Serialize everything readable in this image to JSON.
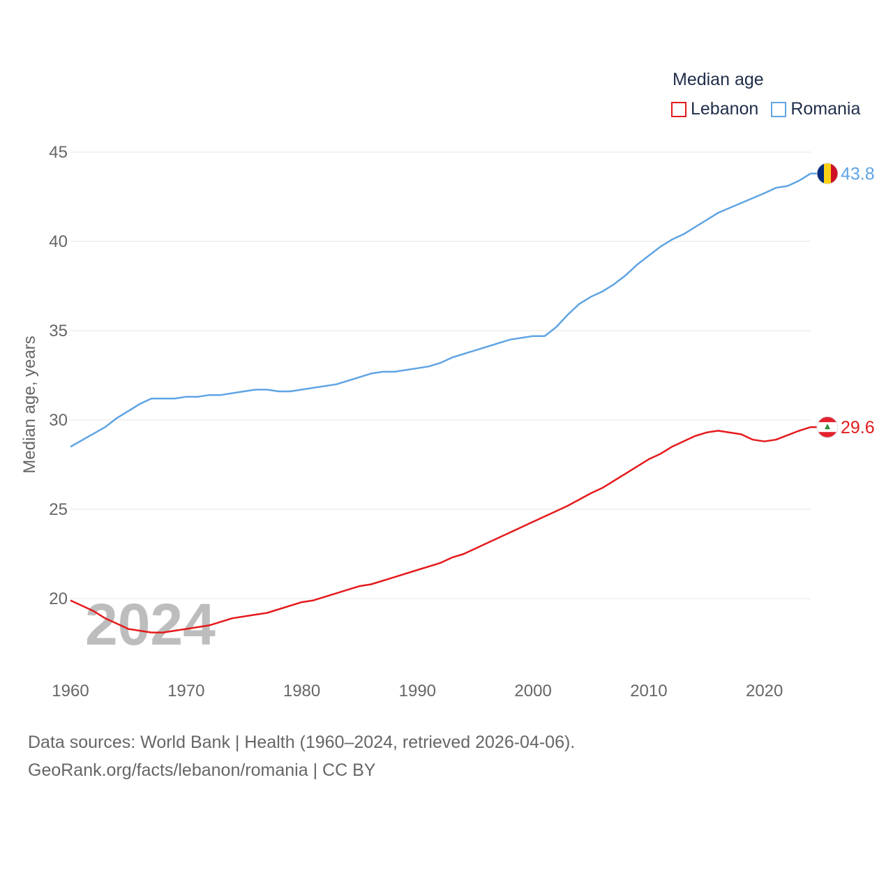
{
  "chart_data": {
    "type": "line",
    "legend_title": "Median age",
    "ylabel": "Median age, years",
    "xlabel": "",
    "x_range": [
      1960,
      2024
    ],
    "ylim": [
      17,
      45
    ],
    "y_ticks": [
      20,
      25,
      30,
      35,
      40,
      45
    ],
    "x_ticks": [
      1960,
      1970,
      1980,
      1990,
      2000,
      2010,
      2020
    ],
    "year_label": "2024",
    "legend_position": "top-right",
    "series": [
      {
        "name": "Lebanon",
        "color": "#e41a1c",
        "end_label": "29.6",
        "flag_icon": "lebanon-flag-icon",
        "points": [
          [
            1960,
            19.9
          ],
          [
            1962,
            19.3
          ],
          [
            1963,
            18.9
          ],
          [
            1964,
            18.6
          ],
          [
            1965,
            18.3
          ],
          [
            1967,
            18.1
          ],
          [
            1968,
            18.1
          ],
          [
            1970,
            18.3
          ],
          [
            1972,
            18.5
          ],
          [
            1974,
            18.9
          ],
          [
            1976,
            19.1
          ],
          [
            1977,
            19.2
          ],
          [
            1980,
            19.8
          ],
          [
            1981,
            19.9
          ],
          [
            1983,
            20.3
          ],
          [
            1985,
            20.7
          ],
          [
            1986,
            20.8
          ],
          [
            1988,
            21.2
          ],
          [
            1990,
            21.6
          ],
          [
            1992,
            22.0
          ],
          [
            1993,
            22.3
          ],
          [
            1994,
            22.5
          ],
          [
            1996,
            23.1
          ],
          [
            1998,
            23.7
          ],
          [
            2000,
            24.3
          ],
          [
            2002,
            24.9
          ],
          [
            2003,
            25.2
          ],
          [
            2005,
            25.9
          ],
          [
            2006,
            26.2
          ],
          [
            2008,
            27.0
          ],
          [
            2010,
            27.8
          ],
          [
            2011,
            28.1
          ],
          [
            2012,
            28.5
          ],
          [
            2014,
            29.1
          ],
          [
            2015,
            29.3
          ],
          [
            2016,
            29.4
          ],
          [
            2018,
            29.2
          ],
          [
            2019,
            28.9
          ],
          [
            2020,
            28.8
          ],
          [
            2021,
            28.9
          ],
          [
            2023,
            29.4
          ],
          [
            2024,
            29.6
          ]
        ]
      },
      {
        "name": "Romania",
        "color": "#5fa4e4",
        "end_label": "43.8",
        "flag_icon": "romania-flag-icon",
        "points": [
          [
            1960,
            28.5
          ],
          [
            1963,
            29.6
          ],
          [
            1964,
            30.1
          ],
          [
            1966,
            30.9
          ],
          [
            1967,
            31.2
          ],
          [
            1969,
            31.2
          ],
          [
            1970,
            31.3
          ],
          [
            1971,
            31.3
          ],
          [
            1972,
            31.4
          ],
          [
            1973,
            31.4
          ],
          [
            1975,
            31.6
          ],
          [
            1976,
            31.7
          ],
          [
            1977,
            31.7
          ],
          [
            1978,
            31.6
          ],
          [
            1979,
            31.6
          ],
          [
            1981,
            31.8
          ],
          [
            1983,
            32.0
          ],
          [
            1985,
            32.4
          ],
          [
            1986,
            32.6
          ],
          [
            1987,
            32.7
          ],
          [
            1988,
            32.7
          ],
          [
            1990,
            32.9
          ],
          [
            1991,
            33.0
          ],
          [
            1992,
            33.2
          ],
          [
            1993,
            33.5
          ],
          [
            1995,
            33.9
          ],
          [
            1998,
            34.5
          ],
          [
            2000,
            34.7
          ],
          [
            2001,
            34.7
          ],
          [
            2002,
            35.2
          ],
          [
            2003,
            35.9
          ],
          [
            2004,
            36.5
          ],
          [
            2005,
            36.9
          ],
          [
            2006,
            37.2
          ],
          [
            2007,
            37.6
          ],
          [
            2008,
            38.1
          ],
          [
            2009,
            38.7
          ],
          [
            2010,
            39.2
          ],
          [
            2011,
            39.7
          ],
          [
            2012,
            40.1
          ],
          [
            2013,
            40.4
          ],
          [
            2016,
            41.6
          ],
          [
            2020,
            42.7
          ],
          [
            2021,
            43.0
          ],
          [
            2022,
            43.1
          ],
          [
            2023,
            43.4
          ],
          [
            2024,
            43.8
          ]
        ]
      }
    ]
  },
  "footer": {
    "line1": "Data sources: World Bank | Health (1960–2024, retrieved 2026-04-06).",
    "line2": "GeoRank.org/facts/lebanon/romania | CC BY"
  }
}
